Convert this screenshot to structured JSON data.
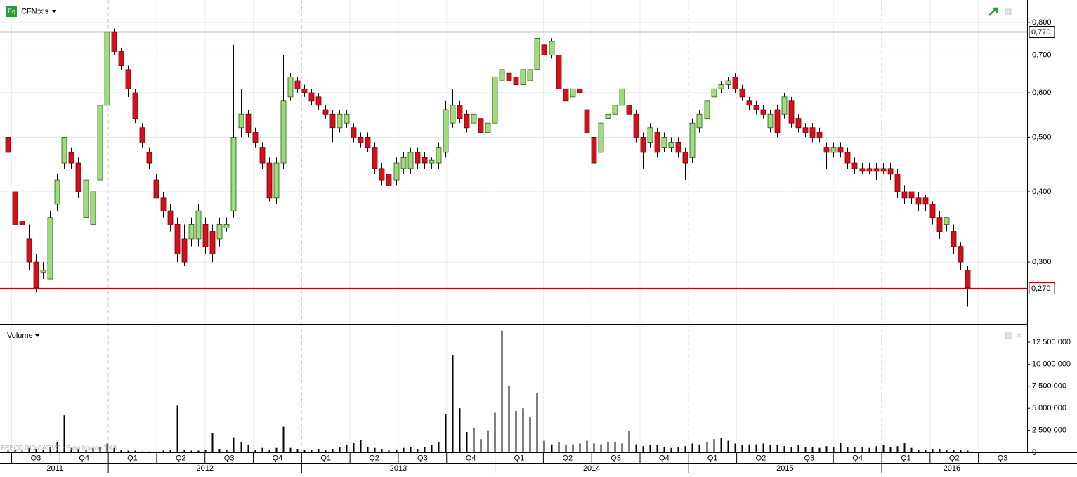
{
  "chart_data": {
    "type": "candlestick",
    "title": "CFN:xls",
    "log_scale": true,
    "grid": true,
    "up_color": "#9fdc7c",
    "down_color": "#d4101c",
    "x": [
      2011.48,
      2011.5165,
      2011.553,
      2011.5895,
      2011.626,
      2011.6625,
      2011.699,
      2011.7355,
      2011.772,
      2011.8085,
      2011.845,
      2011.8815,
      2011.918,
      2011.9545,
      2011.991,
      2012.0275,
      2012.064,
      2012.1005,
      2012.137,
      2012.1735,
      2012.21,
      2012.2465,
      2012.283,
      2012.3195,
      2012.356,
      2012.3925,
      2012.429,
      2012.4655,
      2012.502,
      2012.5385,
      2012.575,
      2012.6115,
      2012.648,
      2012.6845,
      2012.721,
      2012.7575,
      2012.794,
      2012.8305,
      2012.867,
      2012.9035,
      2012.94,
      2012.9765,
      2013.013,
      2013.0495,
      2013.086,
      2013.1225,
      2013.159,
      2013.1955,
      2013.232,
      2013.2685,
      2013.305,
      2013.3415,
      2013.378,
      2013.4145,
      2013.451,
      2013.4875,
      2013.524,
      2013.5605,
      2013.597,
      2013.6335,
      2013.67,
      2013.7065,
      2013.743,
      2013.7795,
      2013.816,
      2013.8525,
      2013.889,
      2013.9255,
      2013.962,
      2013.9985,
      2014.035,
      2014.0715,
      2014.108,
      2014.1445,
      2014.181,
      2014.2175,
      2014.254,
      2014.2905,
      2014.327,
      2014.3635,
      2014.4,
      2014.4365,
      2014.473,
      2014.5095,
      2014.546,
      2014.5825,
      2014.619,
      2014.6555,
      2014.692,
      2014.7285,
      2014.765,
      2014.8015,
      2014.838,
      2014.8745,
      2014.911,
      2014.9475,
      2014.984,
      2015.0205,
      2015.057,
      2015.0935,
      2015.13,
      2015.1665,
      2015.203,
      2015.2395,
      2015.276,
      2015.3125,
      2015.349,
      2015.3855,
      2015.422,
      2015.4585,
      2015.495,
      2015.5315,
      2015.568,
      2015.6045,
      2015.641,
      2015.6775,
      2015.714,
      2015.7505,
      2015.787,
      2015.8235,
      2015.86,
      2015.8965,
      2015.933,
      2015.9695,
      2016.006,
      2016.0425,
      2016.079,
      2016.1155,
      2016.152,
      2016.1885,
      2016.225,
      2016.2615,
      2016.298,
      2016.3345,
      2016.371,
      2016.4075,
      2016.444
    ],
    "open": [
      0.5,
      0.4,
      0.355,
      0.33,
      0.3,
      0.288,
      0.28,
      0.38,
      0.45,
      0.47,
      0.45,
      0.36,
      0.35,
      0.42,
      0.57,
      0.77,
      0.71,
      0.66,
      0.6,
      0.52,
      0.47,
      0.42,
      0.39,
      0.37,
      0.35,
      0.33,
      0.33,
      0.33,
      0.35,
      0.34,
      0.33,
      0.345,
      0.37,
      0.52,
      0.55,
      0.51,
      0.48,
      0.45,
      0.39,
      0.45,
      0.59,
      0.63,
      0.61,
      0.6,
      0.59,
      0.56,
      0.55,
      0.52,
      0.53,
      0.52,
      0.5,
      0.5,
      0.48,
      0.44,
      0.43,
      0.42,
      0.44,
      0.44,
      0.47,
      0.46,
      0.45,
      0.45,
      0.47,
      0.53,
      0.57,
      0.55,
      0.53,
      0.54,
      0.51,
      0.53,
      0.63,
      0.65,
      0.64,
      0.62,
      0.63,
      0.66,
      0.73,
      0.7,
      0.7,
      0.61,
      0.59,
      0.61,
      0.56,
      0.5,
      0.47,
      0.54,
      0.55,
      0.57,
      0.57,
      0.55,
      0.5,
      0.49,
      0.51,
      0.48,
      0.48,
      0.49,
      0.47,
      0.46,
      0.52,
      0.54,
      0.59,
      0.61,
      0.62,
      0.64,
      0.61,
      0.58,
      0.57,
      0.56,
      0.52,
      0.56,
      0.55,
      0.58,
      0.54,
      0.52,
      0.52,
      0.51,
      0.48,
      0.47,
      0.48,
      0.47,
      0.45,
      0.44,
      0.44,
      0.44,
      0.44,
      0.44,
      0.43,
      0.4,
      0.4,
      0.39,
      0.39,
      0.38,
      0.36,
      0.35,
      0.34,
      0.32,
      0.29
    ],
    "high": [
      0.5,
      0.47,
      0.36,
      0.35,
      0.31,
      0.3,
      0.37,
      0.43,
      0.5,
      0.48,
      0.46,
      0.43,
      0.41,
      0.58,
      0.81,
      0.78,
      0.72,
      0.67,
      0.61,
      0.53,
      0.48,
      0.43,
      0.4,
      0.38,
      0.36,
      0.35,
      0.36,
      0.38,
      0.36,
      0.35,
      0.36,
      0.36,
      0.73,
      0.61,
      0.56,
      0.52,
      0.49,
      0.46,
      0.46,
      0.7,
      0.65,
      0.64,
      0.62,
      0.61,
      0.6,
      0.57,
      0.56,
      0.56,
      0.56,
      0.53,
      0.51,
      0.51,
      0.49,
      0.45,
      0.44,
      0.46,
      0.47,
      0.48,
      0.48,
      0.47,
      0.46,
      0.49,
      0.58,
      0.61,
      0.58,
      0.56,
      0.6,
      0.55,
      0.54,
      0.68,
      0.67,
      0.66,
      0.65,
      0.67,
      0.67,
      0.77,
      0.74,
      0.75,
      0.71,
      0.62,
      0.62,
      0.62,
      0.57,
      0.51,
      0.54,
      0.56,
      0.59,
      0.62,
      0.58,
      0.56,
      0.51,
      0.53,
      0.52,
      0.51,
      0.5,
      0.5,
      0.48,
      0.54,
      0.56,
      0.59,
      0.62,
      0.63,
      0.64,
      0.65,
      0.62,
      0.59,
      0.58,
      0.57,
      0.56,
      0.57,
      0.6,
      0.59,
      0.55,
      0.53,
      0.53,
      0.52,
      0.49,
      0.49,
      0.49,
      0.48,
      0.46,
      0.45,
      0.45,
      0.45,
      0.45,
      0.45,
      0.44,
      0.41,
      0.4,
      0.4,
      0.395,
      0.385,
      0.37,
      0.36,
      0.35,
      0.325,
      0.295
    ],
    "low": [
      0.46,
      0.35,
      0.34,
      0.29,
      0.265,
      0.28,
      0.28,
      0.37,
      0.44,
      0.44,
      0.39,
      0.35,
      0.34,
      0.41,
      0.55,
      0.7,
      0.66,
      0.59,
      0.53,
      0.48,
      0.44,
      0.39,
      0.36,
      0.34,
      0.3,
      0.295,
      0.32,
      0.32,
      0.31,
      0.3,
      0.32,
      0.34,
      0.36,
      0.5,
      0.5,
      0.48,
      0.44,
      0.385,
      0.38,
      0.44,
      0.58,
      0.6,
      0.59,
      0.57,
      0.56,
      0.54,
      0.49,
      0.51,
      0.52,
      0.49,
      0.48,
      0.47,
      0.43,
      0.41,
      0.38,
      0.41,
      0.43,
      0.43,
      0.44,
      0.44,
      0.44,
      0.44,
      0.46,
      0.52,
      0.53,
      0.51,
      0.52,
      0.49,
      0.5,
      0.52,
      0.61,
      0.62,
      0.61,
      0.61,
      0.6,
      0.65,
      0.69,
      0.69,
      0.58,
      0.55,
      0.58,
      0.58,
      0.5,
      0.45,
      0.46,
      0.53,
      0.54,
      0.56,
      0.54,
      0.49,
      0.44,
      0.48,
      0.46,
      0.47,
      0.47,
      0.46,
      0.42,
      0.45,
      0.51,
      0.53,
      0.58,
      0.6,
      0.61,
      0.6,
      0.58,
      0.56,
      0.55,
      0.54,
      0.51,
      0.5,
      0.54,
      0.52,
      0.51,
      0.5,
      0.49,
      0.49,
      0.44,
      0.46,
      0.46,
      0.44,
      0.43,
      0.43,
      0.43,
      0.42,
      0.43,
      0.42,
      0.39,
      0.38,
      0.38,
      0.37,
      0.37,
      0.35,
      0.33,
      0.34,
      0.31,
      0.29,
      0.25
    ],
    "close": [
      0.47,
      0.35,
      0.35,
      0.3,
      0.27,
      0.29,
      0.36,
      0.42,
      0.5,
      0.45,
      0.4,
      0.42,
      0.4,
      0.57,
      0.77,
      0.71,
      0.67,
      0.61,
      0.54,
      0.49,
      0.45,
      0.39,
      0.37,
      0.35,
      0.31,
      0.3,
      0.35,
      0.37,
      0.32,
      0.31,
      0.35,
      0.35,
      0.5,
      0.55,
      0.51,
      0.49,
      0.45,
      0.39,
      0.45,
      0.58,
      0.64,
      0.61,
      0.6,
      0.58,
      0.57,
      0.55,
      0.52,
      0.55,
      0.55,
      0.5,
      0.49,
      0.48,
      0.44,
      0.42,
      0.41,
      0.45,
      0.46,
      0.47,
      0.45,
      0.45,
      0.455,
      0.48,
      0.56,
      0.57,
      0.54,
      0.52,
      0.55,
      0.51,
      0.53,
      0.64,
      0.66,
      0.63,
      0.62,
      0.66,
      0.66,
      0.75,
      0.7,
      0.74,
      0.61,
      0.58,
      0.61,
      0.6,
      0.51,
      0.45,
      0.53,
      0.55,
      0.57,
      0.61,
      0.55,
      0.5,
      0.47,
      0.52,
      0.47,
      0.5,
      0.49,
      0.47,
      0.45,
      0.53,
      0.55,
      0.58,
      0.61,
      0.62,
      0.63,
      0.61,
      0.59,
      0.57,
      0.56,
      0.55,
      0.55,
      0.51,
      0.59,
      0.53,
      0.52,
      0.51,
      0.5,
      0.5,
      0.47,
      0.48,
      0.47,
      0.45,
      0.44,
      0.435,
      0.435,
      0.435,
      0.435,
      0.43,
      0.4,
      0.39,
      0.39,
      0.38,
      0.38,
      0.36,
      0.34,
      0.36,
      0.32,
      0.3,
      0.27
    ],
    "xlim": [
      2011.44,
      2016.752
    ],
    "ylim": [
      0.235,
      0.877
    ],
    "yticks": [
      {
        "value": 0.3,
        "label": "0,300"
      },
      {
        "value": 0.4,
        "label": "0,400"
      },
      {
        "value": 0.5,
        "label": "0,500"
      },
      {
        "value": 0.6,
        "label": "0,600"
      },
      {
        "value": 0.7,
        "label": "0,700"
      },
      {
        "value": 0.8,
        "label": "0,800"
      }
    ],
    "reference_lines": [
      {
        "value": 0.77,
        "label": "0,770",
        "color": "#000000"
      },
      {
        "value": 0.27,
        "label": "0,270",
        "color": "#c00000"
      }
    ],
    "quarter_ticks": [
      {
        "value": 2011.625,
        "label": "Q3"
      },
      {
        "value": 2011.875,
        "label": "Q4"
      },
      {
        "value": 2012.125,
        "label": "Q1"
      },
      {
        "value": 2012.375,
        "label": "Q2"
      },
      {
        "value": 2012.625,
        "label": "Q3"
      },
      {
        "value": 2012.875,
        "label": "Q4"
      },
      {
        "value": 2013.125,
        "label": "Q1"
      },
      {
        "value": 2013.375,
        "label": "Q2"
      },
      {
        "value": 2013.625,
        "label": "Q3"
      },
      {
        "value": 2013.875,
        "label": "Q4"
      },
      {
        "value": 2014.125,
        "label": "Q1"
      },
      {
        "value": 2014.375,
        "label": "Q2"
      },
      {
        "value": 2014.625,
        "label": "Q3"
      },
      {
        "value": 2014.875,
        "label": "Q4"
      },
      {
        "value": 2015.125,
        "label": "Q1"
      },
      {
        "value": 2015.375,
        "label": "Q2"
      },
      {
        "value": 2015.625,
        "label": "Q3"
      },
      {
        "value": 2015.875,
        "label": "Q4"
      },
      {
        "value": 2016.125,
        "label": "Q1"
      },
      {
        "value": 2016.375,
        "label": "Q2"
      },
      {
        "value": 2016.625,
        "label": "Q3"
      }
    ],
    "year_ticks": [
      {
        "value": 2011.724,
        "label": "2011"
      },
      {
        "value": 2012.5,
        "label": "2012"
      },
      {
        "value": 2013.5,
        "label": "2013"
      },
      {
        "value": 2014.5,
        "label": "2014"
      },
      {
        "value": 2015.5,
        "label": "2015"
      },
      {
        "value": 2016.363,
        "label": "2016"
      }
    ],
    "note": "PREÇO INDICATIVO - Fuso horário TMS",
    "volume": {
      "title": "Volume",
      "color": "#000000",
      "values": [
        200000,
        300000,
        200000,
        500000,
        400000,
        300000,
        600000,
        1200000,
        4200000,
        500000,
        400000,
        300000,
        500000,
        600000,
        1000000,
        500000,
        300000,
        200000,
        200000,
        100000,
        100000,
        100000,
        200000,
        300000,
        5300000,
        300000,
        200000,
        200000,
        300000,
        2200000,
        400000,
        300000,
        1700000,
        1200000,
        800000,
        300000,
        500000,
        300000,
        500000,
        2900000,
        500000,
        400000,
        300000,
        300000,
        400000,
        300000,
        400000,
        600000,
        800000,
        1100000,
        1400000,
        600000,
        500000,
        400000,
        300000,
        300000,
        500000,
        600000,
        400000,
        600000,
        800000,
        1200000,
        4300000,
        11000000,
        5000000,
        2300000,
        2800000,
        1500000,
        2500000,
        4500000,
        13800000,
        7500000,
        4700000,
        5000000,
        4000000,
        6700000,
        1300000,
        900000,
        1200000,
        800000,
        900000,
        1000000,
        1300000,
        1000000,
        900000,
        1200000,
        1200000,
        1000000,
        2400000,
        900000,
        700000,
        800000,
        800000,
        600000,
        500000,
        600000,
        700000,
        1000000,
        900000,
        1200000,
        1500000,
        1600000,
        1300000,
        1000000,
        800000,
        900000,
        900000,
        1000000,
        800000,
        800000,
        700000,
        600000,
        800000,
        600000,
        600000,
        500000,
        700000,
        600000,
        1100000,
        600000,
        600000,
        600000,
        500000,
        700000,
        800000,
        600000,
        700000,
        1100000,
        500000,
        300000,
        300000,
        400000,
        400000,
        300000,
        300000,
        300000,
        200000
      ],
      "ylim": [
        0,
        14250000
      ],
      "yticks": [
        0,
        {
          "value": 2500000,
          "label": "2 500 000"
        },
        {
          "value": 5000000,
          "label": "5 000 000"
        },
        {
          "value": 7500000,
          "label": "7 500 000"
        },
        {
          "value": 10000000,
          "label": "10 000 000"
        },
        {
          "value": 12500000,
          "label": "12 500 000"
        }
      ]
    }
  }
}
